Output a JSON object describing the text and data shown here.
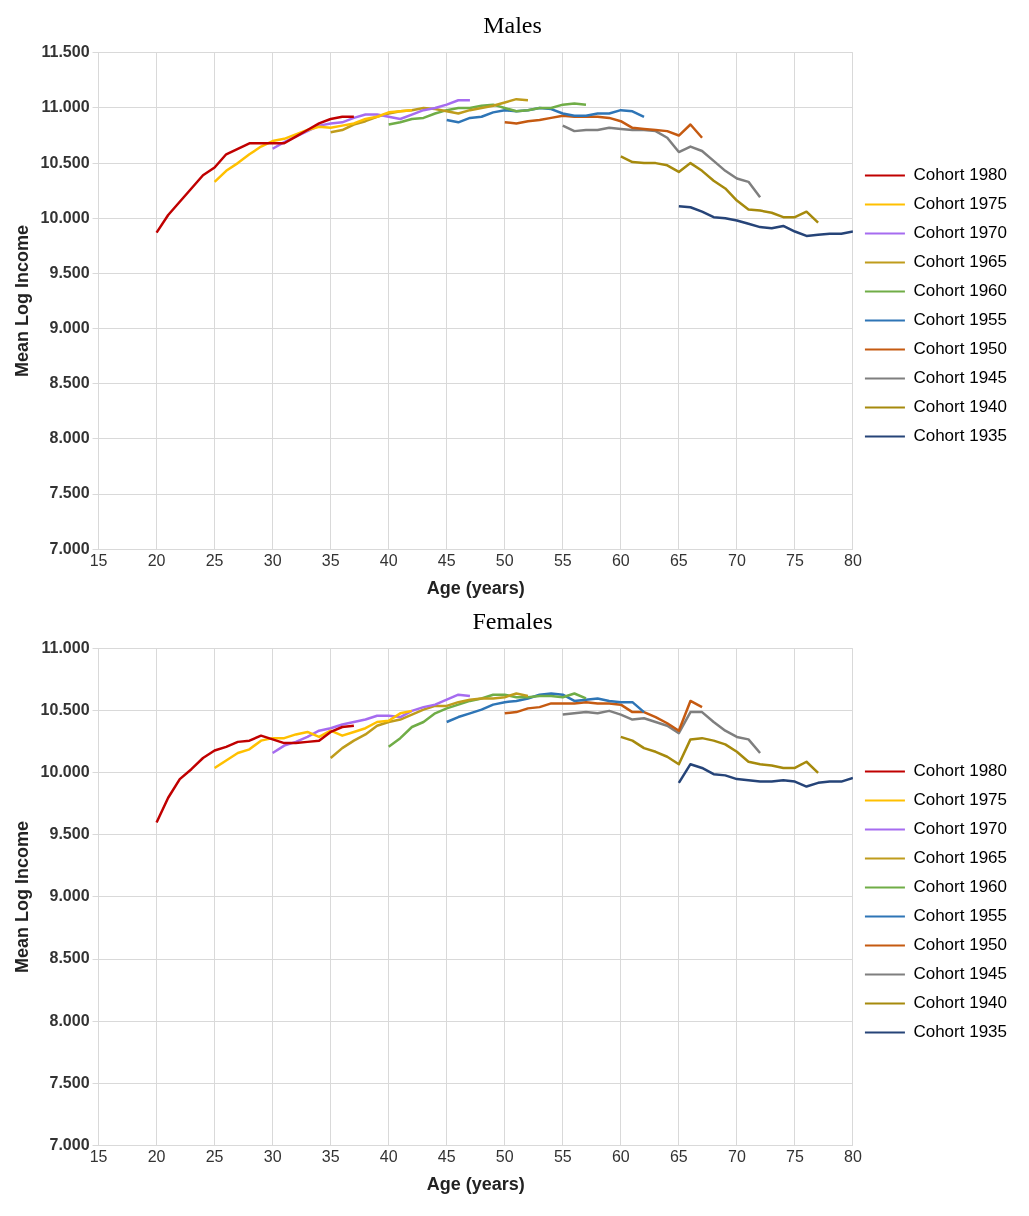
{
  "chart_data": [
    {
      "type": "line",
      "title": "Males",
      "xlabel": "Age (years)",
      "ylabel": "Mean Log Income",
      "xlim": [
        15,
        80
      ],
      "xticks": [
        15,
        20,
        25,
        30,
        35,
        40,
        45,
        50,
        55,
        60,
        65,
        70,
        75,
        80
      ],
      "ylim": [
        7,
        11.5
      ],
      "yticks": [
        {
          "value": 7,
          "label": "7.000"
        },
        {
          "value": 7.5,
          "label": "7.500"
        },
        {
          "value": 8,
          "label": "8.000"
        },
        {
          "value": 8.5,
          "label": "8.500"
        },
        {
          "value": 9,
          "label": "9.000"
        },
        {
          "value": 9.5,
          "label": "9.500"
        },
        {
          "value": 10,
          "label": "10.000"
        },
        {
          "value": 10.5,
          "label": "10.500"
        },
        {
          "value": 11,
          "label": "11.000"
        },
        {
          "value": 11.5,
          "label": "11.500"
        }
      ],
      "grid": true,
      "legend": "right",
      "series": [
        {
          "name": "Cohort 1980",
          "color": "#c00000",
          "x": [
            20,
            21,
            22,
            23,
            24,
            25,
            26,
            27,
            28,
            29,
            30,
            31,
            32,
            33,
            34,
            35,
            36,
            37
          ],
          "values": [
            9.87,
            10.03,
            10.15,
            10.27,
            10.39,
            10.46,
            10.58,
            10.63,
            10.68,
            10.68,
            10.68,
            10.68,
            10.74,
            10.8,
            10.86,
            10.9,
            10.92,
            10.92
          ]
        },
        {
          "name": "Cohort 1975",
          "color": "#ffc000",
          "x": [
            25,
            26,
            27,
            28,
            29,
            30,
            31,
            32,
            33,
            34,
            35,
            36,
            37,
            38,
            39,
            40,
            41,
            42
          ],
          "values": [
            10.33,
            10.43,
            10.5,
            10.58,
            10.65,
            10.7,
            10.72,
            10.76,
            10.8,
            10.83,
            10.82,
            10.84,
            10.86,
            10.9,
            10.92,
            10.96,
            10.97,
            10.98
          ]
        },
        {
          "name": "Cohort 1970",
          "color": "#a66cf0",
          "x": [
            30,
            31,
            32,
            33,
            34,
            35,
            36,
            37,
            38,
            39,
            40,
            41,
            42,
            43,
            44,
            45,
            46,
            47
          ],
          "values": [
            10.63,
            10.69,
            10.74,
            10.79,
            10.84,
            10.86,
            10.87,
            10.91,
            10.94,
            10.94,
            10.92,
            10.9,
            10.94,
            10.98,
            11,
            11.03,
            11.07,
            11.07
          ]
        },
        {
          "name": "Cohort 1965",
          "color": "#bf9c1c",
          "x": [
            35,
            36,
            37,
            38,
            39,
            40,
            41,
            42,
            43,
            44,
            45,
            46,
            47,
            48,
            49,
            50,
            51,
            52
          ],
          "values": [
            10.78,
            10.8,
            10.85,
            10.88,
            10.92,
            10.95,
            10.97,
            10.98,
            11,
            10.99,
            10.97,
            10.95,
            10.98,
            11,
            11.02,
            11.05,
            11.08,
            11.07
          ]
        },
        {
          "name": "Cohort 1960",
          "color": "#70ad47",
          "x": [
            40,
            41,
            42,
            43,
            44,
            45,
            46,
            47,
            48,
            49,
            50,
            51,
            52,
            53,
            54,
            55,
            56,
            57
          ],
          "values": [
            10.85,
            10.87,
            10.9,
            10.91,
            10.95,
            10.98,
            11,
            11,
            11.02,
            11.03,
            11,
            10.97,
            10.98,
            11,
            11,
            11.03,
            11.04,
            11.03
          ]
        },
        {
          "name": "Cohort 1955",
          "color": "#2e75b6",
          "x": [
            45,
            46,
            47,
            48,
            49,
            50,
            51,
            52,
            53,
            54,
            55,
            56,
            57,
            58,
            59,
            60,
            61,
            62
          ],
          "values": [
            10.89,
            10.87,
            10.91,
            10.92,
            10.96,
            10.98,
            10.97,
            10.98,
            11,
            10.99,
            10.95,
            10.93,
            10.93,
            10.95,
            10.95,
            10.98,
            10.97,
            10.92
          ]
        },
        {
          "name": "Cohort 1950",
          "color": "#c55a11",
          "x": [
            50,
            51,
            52,
            53,
            54,
            55,
            56,
            57,
            58,
            59,
            60,
            61,
            62,
            63,
            64,
            65,
            66,
            67
          ],
          "values": [
            10.87,
            10.86,
            10.88,
            10.89,
            10.91,
            10.93,
            10.92,
            10.92,
            10.92,
            10.91,
            10.88,
            10.82,
            10.81,
            10.8,
            10.79,
            10.75,
            10.85,
            10.73
          ]
        },
        {
          "name": "Cohort 1945",
          "color": "#7f7f7f",
          "x": [
            55,
            56,
            57,
            58,
            59,
            60,
            61,
            62,
            63,
            64,
            65,
            66,
            67,
            68,
            69,
            70,
            71,
            72
          ],
          "values": [
            10.84,
            10.79,
            10.8,
            10.8,
            10.82,
            10.81,
            10.8,
            10.8,
            10.79,
            10.73,
            10.6,
            10.65,
            10.61,
            10.52,
            10.43,
            10.36,
            10.33,
            10.19
          ]
        },
        {
          "name": "Cohort 1940",
          "color": "#a68a0d",
          "x": [
            60,
            61,
            62,
            63,
            64,
            65,
            66,
            67,
            68,
            69,
            70,
            71,
            72,
            73,
            74,
            75,
            76,
            77
          ],
          "values": [
            10.56,
            10.51,
            10.5,
            10.5,
            10.48,
            10.42,
            10.5,
            10.43,
            10.34,
            10.27,
            10.16,
            10.08,
            10.07,
            10.05,
            10.01,
            10.01,
            10.06,
            9.96
          ]
        },
        {
          "name": "Cohort 1935",
          "color": "#264478",
          "x": [
            65,
            66,
            67,
            68,
            69,
            70,
            71,
            72,
            73,
            74,
            75,
            76,
            77,
            78,
            79,
            80
          ],
          "values": [
            10.11,
            10.1,
            10.06,
            10.01,
            10,
            9.98,
            9.95,
            9.92,
            9.91,
            9.93,
            9.88,
            9.84,
            9.85,
            9.86,
            9.86,
            9.88
          ]
        }
      ]
    },
    {
      "type": "line",
      "title": "Females",
      "xlabel": "Age (years)",
      "ylabel": "Mean Log Income",
      "xlim": [
        15,
        80
      ],
      "xticks": [
        15,
        20,
        25,
        30,
        35,
        40,
        45,
        50,
        55,
        60,
        65,
        70,
        75,
        80
      ],
      "ylim": [
        7,
        11
      ],
      "yticks": [
        {
          "value": 7,
          "label": "7.000"
        },
        {
          "value": 7.5,
          "label": "7.500"
        },
        {
          "value": 8,
          "label": "8.000"
        },
        {
          "value": 8.5,
          "label": "8.500"
        },
        {
          "value": 9,
          "label": "9.000"
        },
        {
          "value": 9.5,
          "label": "9.500"
        },
        {
          "value": 10,
          "label": "10.000"
        },
        {
          "value": 10.5,
          "label": "10.500"
        },
        {
          "value": 11,
          "label": "11.000"
        }
      ],
      "grid": true,
      "legend": "right",
      "series": [
        {
          "name": "Cohort 1980",
          "color": "#c00000",
          "x": [
            20,
            21,
            22,
            23,
            24,
            25,
            26,
            27,
            28,
            29,
            30,
            31,
            32,
            33,
            34,
            35,
            36,
            37
          ],
          "values": [
            9.6,
            9.8,
            9.95,
            10.03,
            10.12,
            10.18,
            10.21,
            10.25,
            10.26,
            10.3,
            10.27,
            10.24,
            10.24,
            10.25,
            10.26,
            10.33,
            10.37,
            10.38
          ]
        },
        {
          "name": "Cohort 1975",
          "color": "#ffc000",
          "x": [
            25,
            26,
            27,
            28,
            29,
            30,
            31,
            32,
            33,
            34,
            35,
            36,
            37,
            38,
            39,
            40,
            41,
            42
          ],
          "values": [
            10.04,
            10.1,
            10.16,
            10.19,
            10.26,
            10.28,
            10.28,
            10.31,
            10.33,
            10.29,
            10.34,
            10.3,
            10.33,
            10.36,
            10.41,
            10.42,
            10.48,
            10.5
          ]
        },
        {
          "name": "Cohort 1970",
          "color": "#a66cf0",
          "x": [
            30,
            31,
            32,
            33,
            34,
            35,
            36,
            37,
            38,
            39,
            40,
            41,
            42,
            43,
            44,
            45,
            46,
            47
          ],
          "values": [
            10.16,
            10.22,
            10.25,
            10.29,
            10.34,
            10.36,
            10.39,
            10.41,
            10.43,
            10.46,
            10.46,
            10.45,
            10.5,
            10.53,
            10.55,
            10.59,
            10.63,
            10.62
          ]
        },
        {
          "name": "Cohort 1965",
          "color": "#bf9c1c",
          "x": [
            35,
            36,
            37,
            38,
            39,
            40,
            41,
            42,
            43,
            44,
            45,
            46,
            47,
            48,
            49,
            50,
            51,
            52
          ],
          "values": [
            10.12,
            10.2,
            10.26,
            10.31,
            10.38,
            10.41,
            10.43,
            10.47,
            10.51,
            10.54,
            10.54,
            10.57,
            10.59,
            10.6,
            10.6,
            10.61,
            10.64,
            10.62
          ]
        },
        {
          "name": "Cohort 1960",
          "color": "#70ad47",
          "x": [
            40,
            41,
            42,
            43,
            44,
            45,
            46,
            47,
            48,
            49,
            50,
            51,
            52,
            53,
            54,
            55,
            56,
            57
          ],
          "values": [
            10.21,
            10.28,
            10.37,
            10.41,
            10.48,
            10.52,
            10.55,
            10.58,
            10.6,
            10.63,
            10.63,
            10.61,
            10.61,
            10.62,
            10.62,
            10.61,
            10.64,
            10.6
          ]
        },
        {
          "name": "Cohort 1955",
          "color": "#2e75b6",
          "x": [
            45,
            46,
            47,
            48,
            49,
            50,
            51,
            52,
            53,
            54,
            55,
            56,
            57,
            58,
            59,
            60,
            61,
            62
          ],
          "values": [
            10.41,
            10.45,
            10.48,
            10.51,
            10.55,
            10.57,
            10.58,
            10.6,
            10.63,
            10.64,
            10.63,
            10.58,
            10.59,
            10.6,
            10.58,
            10.57,
            10.57,
            10.49
          ]
        },
        {
          "name": "Cohort 1950",
          "color": "#c55a11",
          "x": [
            50,
            51,
            52,
            53,
            54,
            55,
            56,
            57,
            58,
            59,
            60,
            61,
            62,
            63,
            64,
            65,
            66,
            67
          ],
          "values": [
            10.48,
            10.49,
            10.52,
            10.53,
            10.56,
            10.56,
            10.56,
            10.57,
            10.56,
            10.56,
            10.55,
            10.49,
            10.49,
            10.45,
            10.4,
            10.34,
            10.58,
            10.53
          ]
        },
        {
          "name": "Cohort 1945",
          "color": "#7f7f7f",
          "x": [
            55,
            56,
            57,
            58,
            59,
            60,
            61,
            62,
            63,
            64,
            65,
            66,
            67,
            68,
            69,
            70,
            71,
            72
          ],
          "values": [
            10.47,
            10.48,
            10.49,
            10.48,
            10.5,
            10.47,
            10.43,
            10.44,
            10.41,
            10.38,
            10.32,
            10.49,
            10.49,
            10.41,
            10.34,
            10.29,
            10.27,
            10.16
          ]
        },
        {
          "name": "Cohort 1940",
          "color": "#a68a0d",
          "x": [
            60,
            61,
            62,
            63,
            64,
            65,
            66,
            67,
            68,
            69,
            70,
            71,
            72,
            73,
            74,
            75,
            76,
            77
          ],
          "values": [
            10.29,
            10.26,
            10.2,
            10.17,
            10.13,
            10.07,
            10.27,
            10.28,
            10.26,
            10.23,
            10.17,
            10.09,
            10.07,
            10.06,
            10.04,
            10.04,
            10.09,
            10
          ]
        },
        {
          "name": "Cohort 1935",
          "color": "#264478",
          "x": [
            65,
            66,
            67,
            68,
            69,
            70,
            71,
            72,
            73,
            74,
            75,
            76,
            77,
            78,
            79,
            80
          ],
          "values": [
            9.92,
            10.07,
            10.04,
            9.99,
            9.98,
            9.95,
            9.94,
            9.93,
            9.93,
            9.94,
            9.93,
            9.89,
            9.92,
            9.93,
            9.93,
            9.96
          ]
        }
      ]
    }
  ]
}
